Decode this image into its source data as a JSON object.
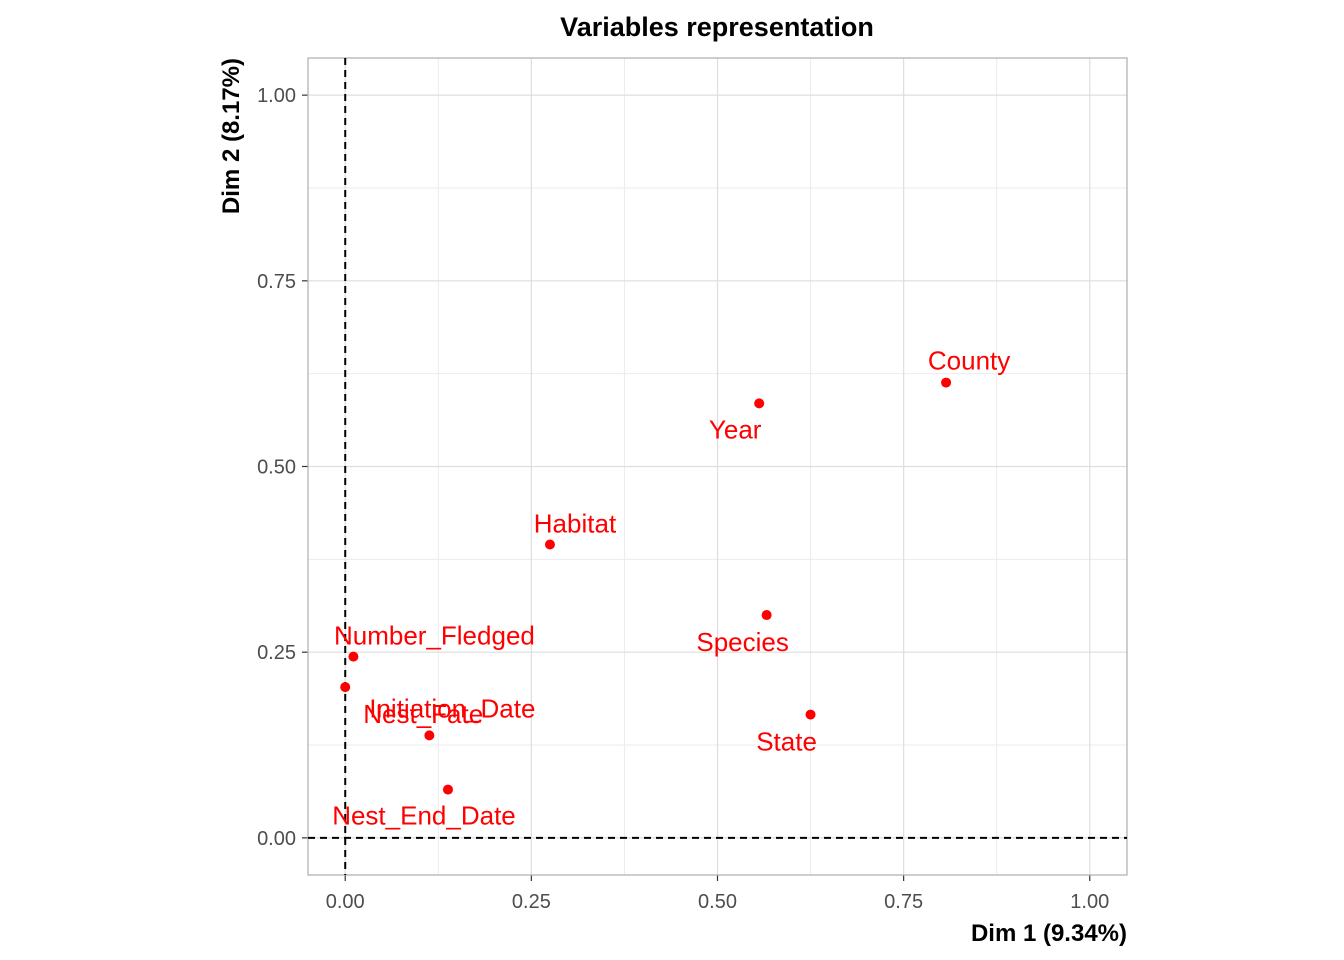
{
  "chart_data": {
    "type": "scatter",
    "title": "Variables representation",
    "xlabel": "Dim 1 (9.34%)",
    "ylabel": "Dim 2 (8.17%)",
    "xlim": [
      -0.05,
      1.05
    ],
    "ylim": [
      -0.05,
      1.05
    ],
    "x_ticks": [
      "0.00",
      "0.25",
      "0.50",
      "0.75",
      "1.00"
    ],
    "y_ticks": [
      "0.00",
      "0.25",
      "0.50",
      "0.75",
      "1.00"
    ],
    "grid": true,
    "reference_lines": {
      "x": 0,
      "y": 0,
      "style": "dashed"
    },
    "point_color": "#ff0000",
    "points": [
      {
        "label": "County",
        "x": 0.807,
        "y": 0.613
      },
      {
        "label": "Year",
        "x": 0.556,
        "y": 0.585
      },
      {
        "label": "Habitat",
        "x": 0.275,
        "y": 0.395
      },
      {
        "label": "Species",
        "x": 0.566,
        "y": 0.3
      },
      {
        "label": "State",
        "x": 0.625,
        "y": 0.166
      },
      {
        "label": "Number_Fledged",
        "x": 0.011,
        "y": 0.244
      },
      {
        "label": "Nest_Fate",
        "x": 0.0,
        "y": 0.203
      },
      {
        "label": "Initiation_Date",
        "x": 0.113,
        "y": 0.138
      },
      {
        "label": "Nest_End_Date",
        "x": 0.138,
        "y": 0.065
      }
    ]
  }
}
